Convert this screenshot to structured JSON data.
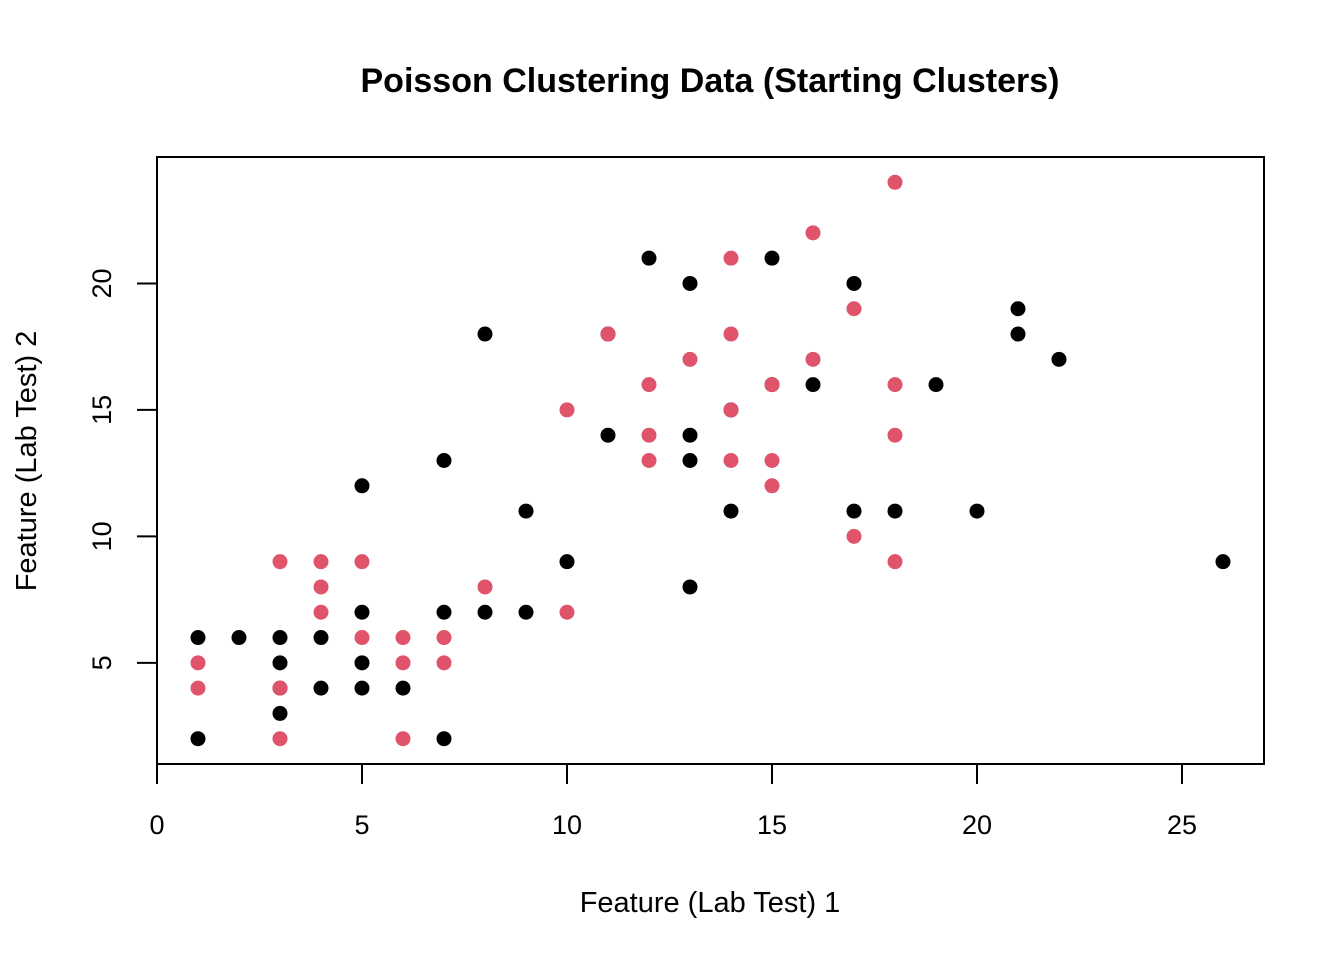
{
  "chart_data": {
    "type": "scatter",
    "title": "Poisson Clustering Data (Starting Clusters)",
    "xlabel": "Feature (Lab Test) 1",
    "ylabel": "Feature (Lab Test) 2",
    "xlim": [
      0,
      27
    ],
    "ylim": [
      1,
      25
    ],
    "xticks": [
      0,
      5,
      10,
      15,
      20,
      25
    ],
    "yticks": [
      5,
      10,
      15,
      20
    ],
    "grid": false,
    "legend": "none",
    "colors": {
      "cluster1": "#000000",
      "cluster2": "#DF536B"
    },
    "series": [
      {
        "color": "#000000",
        "points": [
          [
            1,
            2
          ],
          [
            1,
            6
          ],
          [
            2,
            6
          ],
          [
            3,
            3
          ],
          [
            3,
            4
          ],
          [
            3,
            5
          ],
          [
            3,
            6
          ],
          [
            4,
            4
          ],
          [
            4,
            6
          ],
          [
            5,
            4
          ],
          [
            5,
            5
          ],
          [
            5,
            7
          ],
          [
            5,
            12
          ],
          [
            6,
            4
          ],
          [
            7,
            2
          ],
          [
            7,
            7
          ],
          [
            7,
            13
          ],
          [
            8,
            7
          ],
          [
            8,
            18
          ],
          [
            9,
            7
          ],
          [
            9,
            11
          ],
          [
            10,
            9
          ],
          [
            11,
            14
          ],
          [
            11,
            18
          ],
          [
            12,
            21
          ],
          [
            13,
            8
          ],
          [
            13,
            13
          ],
          [
            13,
            14
          ],
          [
            13,
            20
          ],
          [
            14,
            11
          ],
          [
            14,
            15
          ],
          [
            15,
            16
          ],
          [
            15,
            21
          ],
          [
            16,
            16
          ],
          [
            17,
            11
          ],
          [
            17,
            20
          ],
          [
            18,
            11
          ],
          [
            19,
            16
          ],
          [
            20,
            11
          ],
          [
            21,
            18
          ],
          [
            21,
            19
          ],
          [
            22,
            17
          ],
          [
            26,
            9
          ]
        ]
      },
      {
        "color": "#DF536B",
        "points": [
          [
            1,
            4
          ],
          [
            1,
            5
          ],
          [
            3,
            2
          ],
          [
            3,
            4
          ],
          [
            3,
            9
          ],
          [
            4,
            7
          ],
          [
            4,
            8
          ],
          [
            4,
            9
          ],
          [
            5,
            6
          ],
          [
            5,
            9
          ],
          [
            6,
            2
          ],
          [
            6,
            5
          ],
          [
            6,
            6
          ],
          [
            7,
            5
          ],
          [
            7,
            6
          ],
          [
            8,
            8
          ],
          [
            10,
            7
          ],
          [
            10,
            15
          ],
          [
            11,
            18
          ],
          [
            12,
            13
          ],
          [
            12,
            14
          ],
          [
            12,
            16
          ],
          [
            13,
            17
          ],
          [
            14,
            13
          ],
          [
            14,
            15
          ],
          [
            14,
            18
          ],
          [
            14,
            21
          ],
          [
            15,
            12
          ],
          [
            15,
            13
          ],
          [
            15,
            16
          ],
          [
            16,
            17
          ],
          [
            16,
            22
          ],
          [
            17,
            10
          ],
          [
            17,
            19
          ],
          [
            18,
            9
          ],
          [
            18,
            14
          ],
          [
            18,
            16
          ],
          [
            18,
            24
          ]
        ]
      }
    ]
  }
}
